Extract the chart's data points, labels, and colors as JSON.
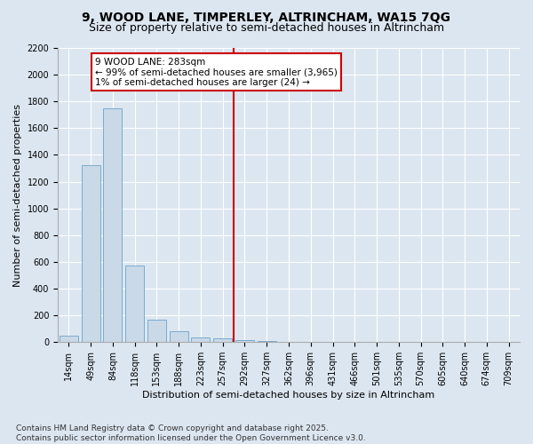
{
  "title": "9, WOOD LANE, TIMPERLEY, ALTRINCHAM, WA15 7QG",
  "subtitle": "Size of property relative to semi-detached houses in Altrincham",
  "xlabel": "Distribution of semi-detached houses by size in Altrincham",
  "ylabel": "Number of semi-detached properties",
  "categories": [
    "14sqm",
    "49sqm",
    "84sqm",
    "118sqm",
    "153sqm",
    "188sqm",
    "223sqm",
    "257sqm",
    "292sqm",
    "327sqm",
    "362sqm",
    "396sqm",
    "431sqm",
    "466sqm",
    "501sqm",
    "535sqm",
    "570sqm",
    "605sqm",
    "640sqm",
    "674sqm",
    "709sqm"
  ],
  "values": [
    50,
    1320,
    1750,
    570,
    170,
    80,
    35,
    25,
    15,
    5,
    0,
    0,
    0,
    0,
    0,
    0,
    0,
    0,
    0,
    0,
    0
  ],
  "bar_color": "#c9d9e8",
  "bar_edge_color": "#7aabcf",
  "vline_x_index": 8,
  "vline_color": "#cc0000",
  "annotation_text": "9 WOOD LANE: 283sqm\n← 99% of semi-detached houses are smaller (3,965)\n1% of semi-detached houses are larger (24) →",
  "annotation_box_color": "#ffffff",
  "annotation_box_edge_color": "#cc0000",
  "ylim": [
    0,
    2200
  ],
  "yticks": [
    0,
    200,
    400,
    600,
    800,
    1000,
    1200,
    1400,
    1600,
    1800,
    2000,
    2200
  ],
  "bg_color": "#dce6f0",
  "plot_bg_color": "#dce6f0",
  "footer": "Contains HM Land Registry data © Crown copyright and database right 2025.\nContains public sector information licensed under the Open Government Licence v3.0.",
  "title_fontsize": 10,
  "subtitle_fontsize": 9,
  "axis_label_fontsize": 8,
  "tick_fontsize": 7,
  "annotation_fontsize": 7.5,
  "footer_fontsize": 6.5
}
